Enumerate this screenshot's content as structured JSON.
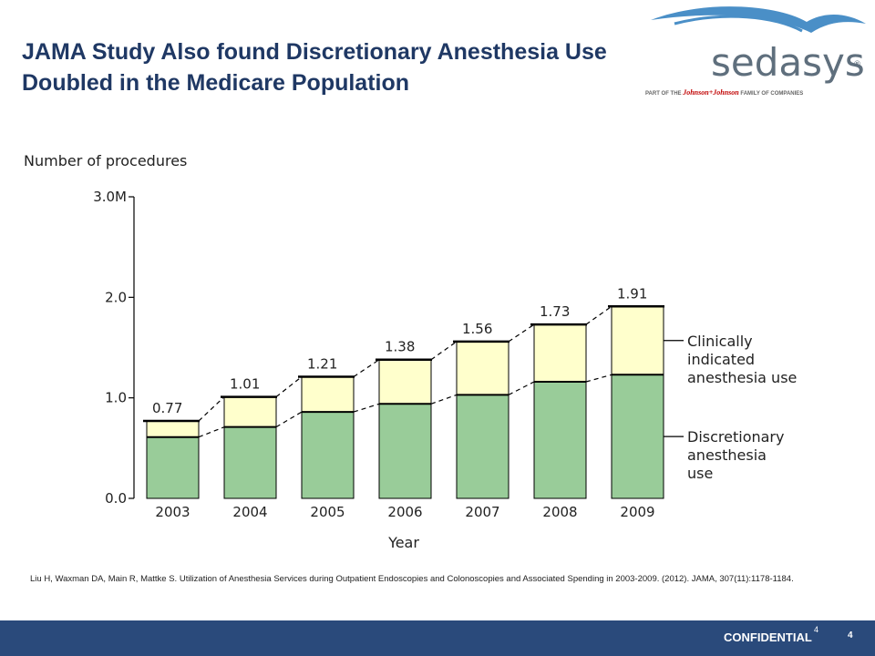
{
  "slide": {
    "title_line1": "JAMA Study Also found Discretionary Anesthesia Use",
    "title_line2": "Doubled in the Medicare Population",
    "citation": "Liu H, Waxman DA, Main R, Mattke S. Utilization of Anesthesia Services during Outpatient Endoscopies and Colonoscopies and Associated Spending in 2003-2009. (2012). JAMA, 307(11):1178-1184.",
    "footer_label": "CONFIDENTIAL",
    "page_number_small": "4",
    "page_number": "4"
  },
  "logo": {
    "word": "sedasys",
    "registered": "®",
    "tagline_prefix": "PART OF THE",
    "tagline_brand": "Johnson+Johnson",
    "tagline_suffix": "FAMILY OF COMPANIES"
  },
  "colors": {
    "title": "#1f3864",
    "discretionary": "#99cc99",
    "clinical": "#ffffcc",
    "footer": "#2a4a7b",
    "logo_wave": "#4a8fc7"
  },
  "chart_data": {
    "type": "bar",
    "stacked": true,
    "ylabel": "Number of procedures",
    "xlabel": "Year",
    "ylim": [
      0,
      3.0
    ],
    "y_ticks": [
      "0.0",
      "1.0",
      "2.0",
      "3.0M"
    ],
    "categories": [
      "2003",
      "2004",
      "2005",
      "2006",
      "2007",
      "2008",
      "2009"
    ],
    "totals": [
      "0.77",
      "1.01",
      "1.21",
      "1.38",
      "1.56",
      "1.73",
      "1.91"
    ],
    "series": [
      {
        "name": "Discretionary anesthesia use",
        "values": [
          0.61,
          0.71,
          0.86,
          0.94,
          1.03,
          1.16,
          1.23
        ]
      },
      {
        "name": "Clinically indicated anesthesia use",
        "values": [
          0.16,
          0.3,
          0.35,
          0.44,
          0.53,
          0.57,
          0.68
        ]
      }
    ],
    "legend": {
      "clinical_lines": [
        "Clinically",
        "indicated",
        "anesthesia use"
      ],
      "discretionary_lines": [
        "Discretionary",
        "anesthesia",
        "use"
      ]
    },
    "connector_lines": "dashed",
    "grid": false
  }
}
